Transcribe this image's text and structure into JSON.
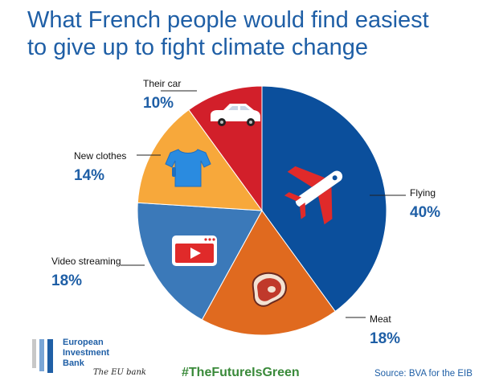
{
  "title_line1": "What French people would find easiest",
  "title_line2": "to give up to fight climate change",
  "chart_data": {
    "type": "pie",
    "title": "What French people would find easiest to give up to fight climate change",
    "slices": [
      {
        "label": "Flying",
        "value": 40,
        "value_label": "40%",
        "color": "#0b4f9c",
        "icon": "airplane-icon"
      },
      {
        "label": "Meat",
        "value": 18,
        "value_label": "18%",
        "color": "#e06a1f",
        "icon": "steak-icon"
      },
      {
        "label": "Video streaming",
        "value": 18,
        "value_label": "18%",
        "color": "#3b79b9",
        "icon": "video-player-icon"
      },
      {
        "label": "New clothes",
        "value": 14,
        "value_label": "14%",
        "color": "#f7a83b",
        "icon": "t-shirt-icon"
      },
      {
        "label": "Their car",
        "value": 10,
        "value_label": "10%",
        "color": "#d21f2a",
        "icon": "car-icon"
      }
    ],
    "start": "12 o'clock",
    "direction": "clockwise"
  },
  "footer": {
    "logo_line1": "European",
    "logo_line2": "Investment",
    "logo_line3": "Bank",
    "tagline": "The EU bank",
    "hashtag": "#TheFutureIsGreen",
    "source": "Source: BVA for the EIB"
  }
}
